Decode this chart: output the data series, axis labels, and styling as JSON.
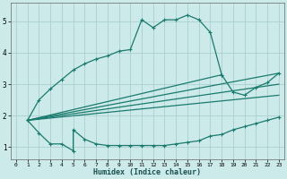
{
  "xlabel": "Humidex (Indice chaleur)",
  "bg_color": "#cceaea",
  "line_color": "#1a7a6e",
  "grid_color": "#aacfcf",
  "xlim": [
    -0.5,
    23.5
  ],
  "ylim": [
    0.6,
    5.6
  ],
  "xticks": [
    0,
    1,
    2,
    3,
    4,
    5,
    6,
    7,
    8,
    9,
    10,
    11,
    12,
    13,
    14,
    15,
    16,
    17,
    18,
    19,
    20,
    21,
    22,
    23
  ],
  "yticks": [
    1,
    2,
    3,
    4,
    5
  ],
  "curve1_x": [
    1,
    2,
    3,
    4,
    5,
    6,
    7,
    8,
    9,
    10,
    11,
    12,
    13,
    14,
    15,
    16,
    17,
    18
  ],
  "curve1_y": [
    1.85,
    2.5,
    2.85,
    3.15,
    3.45,
    3.65,
    3.8,
    3.9,
    4.05,
    4.1,
    5.05,
    4.8,
    5.05,
    5.05,
    5.2,
    5.05,
    4.65,
    3.3
  ],
  "curve2_x": [
    1,
    2,
    3,
    4,
    5,
    5,
    6,
    7,
    8,
    9,
    10,
    11,
    12,
    13,
    14,
    15,
    16,
    17,
    18,
    19,
    20,
    21,
    22,
    23
  ],
  "curve2_y": [
    1.85,
    1.45,
    1.1,
    1.1,
    0.88,
    1.55,
    1.25,
    1.1,
    1.05,
    1.05,
    1.05,
    1.05,
    1.05,
    1.05,
    1.1,
    1.15,
    1.2,
    1.35,
    1.4,
    1.55,
    1.65,
    1.75,
    1.85,
    1.95
  ],
  "line1_x": [
    1,
    18,
    19,
    20,
    21,
    22,
    23
  ],
  "line1_y": [
    1.85,
    3.3,
    2.75,
    2.65,
    2.9,
    3.05,
    3.35
  ],
  "line2_x": [
    1,
    23
  ],
  "line2_y": [
    1.85,
    3.35
  ],
  "line3_x": [
    1,
    23
  ],
  "line3_y": [
    1.85,
    2.65
  ],
  "line4_x": [
    1,
    23
  ],
  "line4_y": [
    1.85,
    3.0
  ]
}
